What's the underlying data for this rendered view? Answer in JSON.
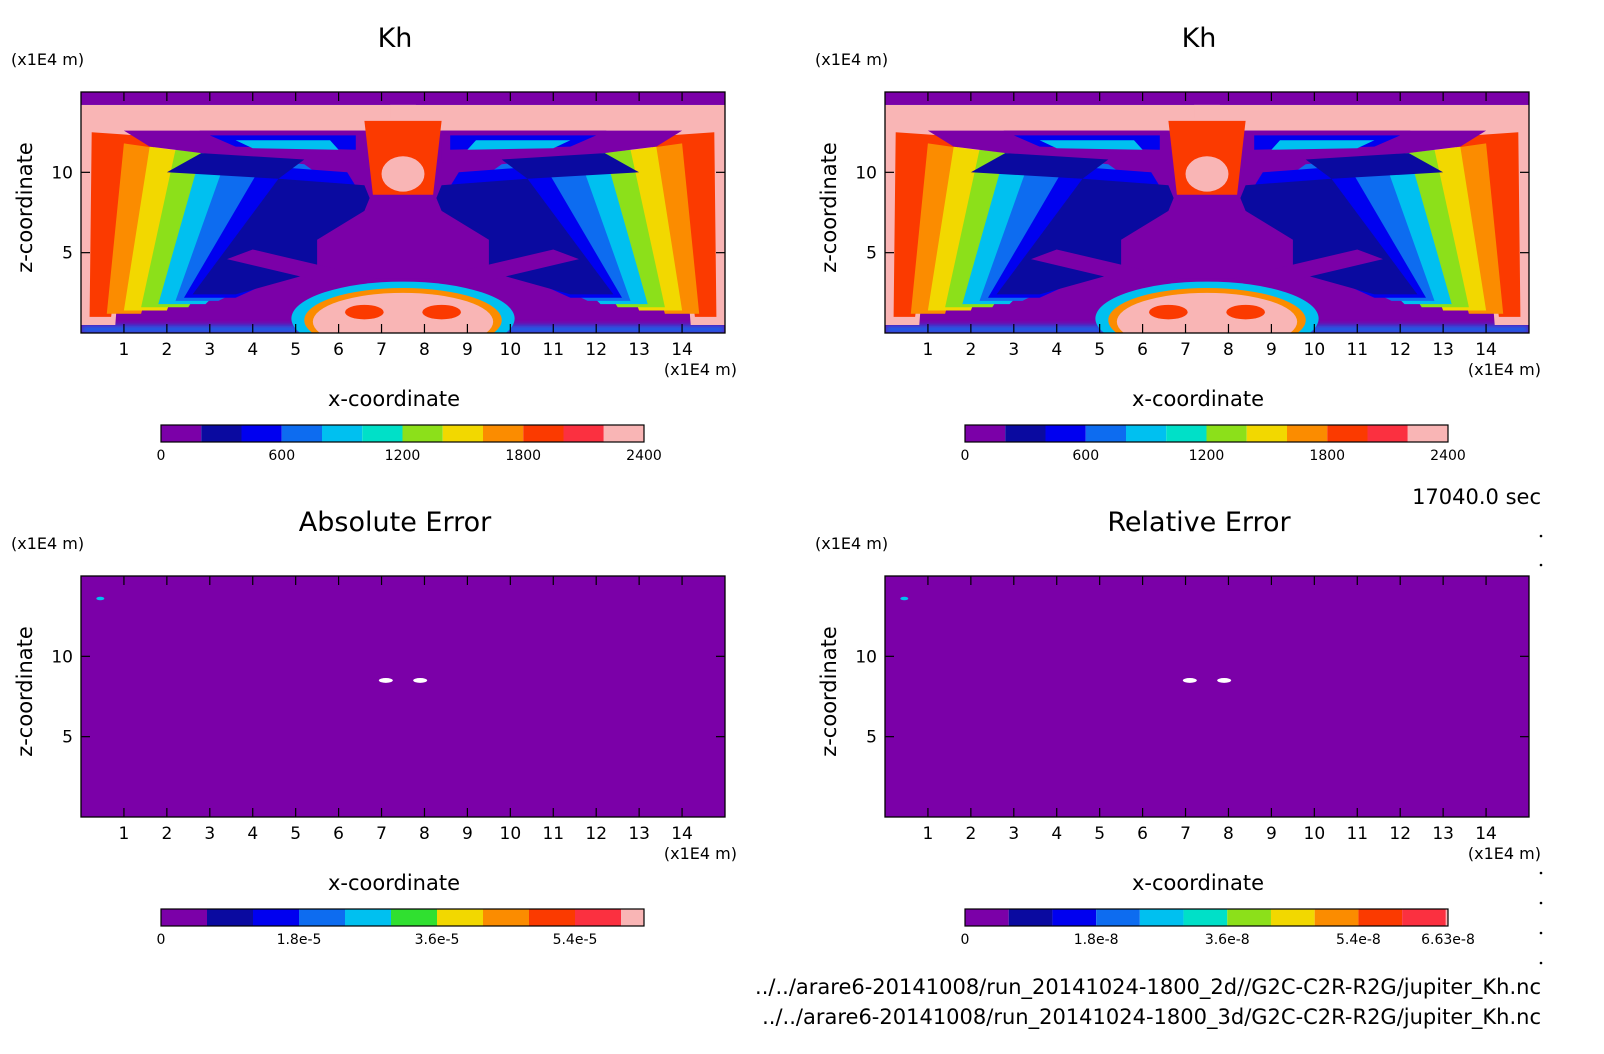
{
  "time_label": "17040.0 sec",
  "footer": {
    "file_2d": "../../arare6-20141008/run_20141024-1800_2d//G2C-C2R-R2G/jupiter_Kh.nc",
    "file_3d": "../../arare6-20141008/run_20141024-1800_3d/G2C-C2R-R2G/jupiter_Kh.nc"
  },
  "chart_data": [
    {
      "type": "heatmap",
      "title": "Kh",
      "xlabel": "x-coordinate",
      "ylabel": "z-coordinate",
      "x_unit": "(x1E4 m)",
      "y_unit": "(x1E4 m)",
      "xlim": [
        0,
        15
      ],
      "ylim": [
        0,
        15
      ],
      "x_ticks": [
        1,
        2,
        3,
        4,
        5,
        6,
        7,
        8,
        9,
        10,
        11,
        12,
        13,
        14
      ],
      "y_ticks": [
        5,
        10
      ],
      "colorbar": {
        "min": 0,
        "max": 2400,
        "levels": [
          0,
          200,
          400,
          600,
          800,
          1000,
          1200,
          1400,
          1600,
          1800,
          2000,
          2200,
          2400
        ],
        "tick_labels": [
          "0",
          "600",
          "1200",
          "1800",
          "2400"
        ],
        "tick_values": [
          0,
          600,
          1200,
          1800,
          2400
        ],
        "colors": [
          "#7b00a8",
          "#0a0aa0",
          "#0000f0",
          "#0d6cf0",
          "#00c0f0",
          "#00e0c8",
          "#8ce01a",
          "#f2d800",
          "#fb8c00",
          "#fb3a00",
          "#fb3040",
          "#f9b5b5"
        ]
      },
      "field": "Kh"
    },
    {
      "type": "heatmap",
      "title": "Kh",
      "xlabel": "x-coordinate",
      "ylabel": "z-coordinate",
      "x_unit": "(x1E4 m)",
      "y_unit": "(x1E4 m)",
      "xlim": [
        0,
        15
      ],
      "ylim": [
        0,
        15
      ],
      "x_ticks": [
        1,
        2,
        3,
        4,
        5,
        6,
        7,
        8,
        9,
        10,
        11,
        12,
        13,
        14
      ],
      "y_ticks": [
        5,
        10
      ],
      "colorbar": {
        "min": 0,
        "max": 2400,
        "levels": [
          0,
          200,
          400,
          600,
          800,
          1000,
          1200,
          1400,
          1600,
          1800,
          2000,
          2200,
          2400
        ],
        "tick_labels": [
          "0",
          "600",
          "1200",
          "1800",
          "2400"
        ],
        "tick_values": [
          0,
          600,
          1200,
          1800,
          2400
        ],
        "colors": [
          "#7b00a8",
          "#0a0aa0",
          "#0000f0",
          "#0d6cf0",
          "#00c0f0",
          "#00e0c8",
          "#8ce01a",
          "#f2d800",
          "#fb8c00",
          "#fb3a00",
          "#fb3040",
          "#f9b5b5"
        ]
      },
      "field": "Kh"
    },
    {
      "type": "heatmap",
      "title": "Absolute Error",
      "xlabel": "x-coordinate",
      "ylabel": "z-coordinate",
      "x_unit": "(x1E4 m)",
      "y_unit": "(x1E4 m)",
      "xlim": [
        0,
        15
      ],
      "ylim": [
        0,
        15
      ],
      "x_ticks": [
        1,
        2,
        3,
        4,
        5,
        6,
        7,
        8,
        9,
        10,
        11,
        12,
        13,
        14
      ],
      "y_ticks": [
        5,
        10
      ],
      "colorbar": {
        "min": 0,
        "max": 6.3e-05,
        "levels": [
          0,
          6e-06,
          1.2e-05,
          1.8e-05,
          2.4e-05,
          3e-05,
          3.6e-05,
          4.2e-05,
          4.8e-05,
          5.4e-05,
          6e-05,
          6.3e-05
        ],
        "tick_labels": [
          "0",
          "1.8e-5",
          "3.6e-5",
          "5.4e-5"
        ],
        "tick_values": [
          0,
          1.8e-05,
          3.6e-05,
          5.4e-05
        ],
        "colors": [
          "#7b00a8",
          "#0a0aa0",
          "#0000f0",
          "#0d6cf0",
          "#00c0f0",
          "#30e030",
          "#f2d800",
          "#fb8c00",
          "#fb3a00",
          "#fb3040",
          "#f9b5b5"
        ]
      },
      "field": "error",
      "hot_spots": [
        {
          "x": 0.45,
          "z": 13.6
        }
      ],
      "missing_spots": [
        {
          "x": 7.1,
          "z": 8.5
        },
        {
          "x": 7.9,
          "z": 8.5
        }
      ]
    },
    {
      "type": "heatmap",
      "title": "Relative Error",
      "xlabel": "x-coordinate",
      "ylabel": "z-coordinate",
      "x_unit": "(x1E4 m)",
      "y_unit": "(x1E4 m)",
      "xlim": [
        0,
        15
      ],
      "ylim": [
        0,
        15
      ],
      "x_ticks": [
        1,
        2,
        3,
        4,
        5,
        6,
        7,
        8,
        9,
        10,
        11,
        12,
        13,
        14
      ],
      "y_ticks": [
        5,
        10
      ],
      "colorbar": {
        "min": 0,
        "max": 6.63e-08,
        "levels": [
          0,
          6e-09,
          1.2e-08,
          1.8e-08,
          2.4e-08,
          3e-08,
          3.6e-08,
          4.2e-08,
          4.8e-08,
          5.4e-08,
          6e-08,
          6.6e-08,
          6.63e-08
        ],
        "tick_labels": [
          "0",
          "1.8e-8",
          "3.6e-8",
          "5.4e-8",
          "6.63e-8"
        ],
        "tick_values": [
          0,
          1.8e-08,
          3.6e-08,
          5.4e-08,
          6.63e-08
        ],
        "colors": [
          "#7b00a8",
          "#0a0aa0",
          "#0000f0",
          "#0d6cf0",
          "#00c0f0",
          "#00e0c8",
          "#8ce01a",
          "#f2d800",
          "#fb8c00",
          "#fb3a00",
          "#fb3040",
          "#f9b5b5"
        ]
      },
      "field": "error",
      "hot_spots": [
        {
          "x": 0.45,
          "z": 13.6
        }
      ],
      "missing_spots": [
        {
          "x": 7.1,
          "z": 8.5
        },
        {
          "x": 7.9,
          "z": 8.5
        }
      ]
    }
  ]
}
